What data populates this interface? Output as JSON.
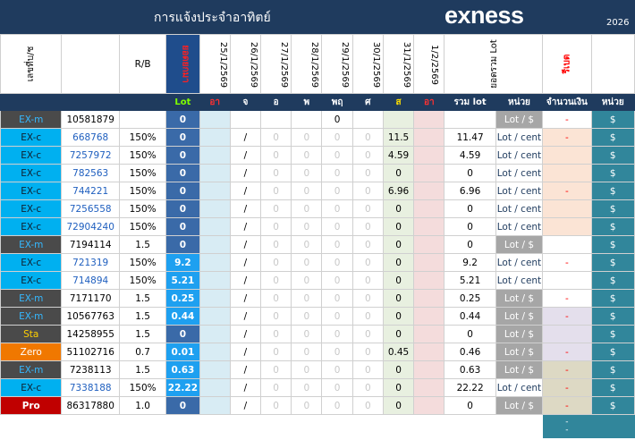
{
  "header": {
    "title": "การแจ้งประจำอาทิตย์",
    "brand": "exness",
    "year": "2026"
  },
  "columns": {
    "account": "เลขที่บ/ช",
    "rb": "R/B",
    "prev_lot": "ยอดยกมา",
    "dates": [
      "25/1/2569",
      "26/1/2569",
      "27/1/2569",
      "28/1/2569",
      "29/1/2569",
      "30/1/2569",
      "31/1/2569",
      "1/2/2569"
    ],
    "total_lot": "ยอดรวม Lot",
    "rebate": "รีเบต"
  },
  "subheader": {
    "lot": "Lot",
    "days": [
      "อา",
      "จ",
      "อ",
      "พ",
      "พฤ",
      "ศ",
      "ส",
      "อา"
    ],
    "total": "รวม lot",
    "unit": "หน่วย",
    "amount": "จำนวนเงิน",
    "unit2": "หน่วย"
  },
  "rows": [
    {
      "type": "EX-m",
      "acct": "10581879",
      "rb": "",
      "lot": "0",
      "d1": "/",
      "days": [
        "",
        "",
        "",
        "0",
        "",
        ""
      ],
      "sat": "",
      "total": "",
      "unit": "Lot / $",
      "amount": "-",
      "cur": "$"
    },
    {
      "type": "EX-c",
      "acct": "668768",
      "rb": "150%",
      "lot": "0",
      "d1": "/",
      "days": [
        "0",
        "0",
        "0",
        "0"
      ],
      "sat": "11.5",
      "total": "11.47",
      "unit": "Lot / cent",
      "amount": "-",
      "cur": "$"
    },
    {
      "type": "EX-c",
      "acct": "7257972",
      "rb": "150%",
      "lot": "0",
      "d1": "/",
      "days": [
        "0",
        "0",
        "0",
        "0"
      ],
      "sat": "4.59",
      "total": "4.59",
      "unit": "Lot / cent",
      "amount": "",
      "cur": "$"
    },
    {
      "type": "EX-c",
      "acct": "782563",
      "rb": "150%",
      "lot": "0",
      "d1": "/",
      "days": [
        "0",
        "0",
        "0",
        "0"
      ],
      "sat": "0",
      "total": "0",
      "unit": "Lot / cent",
      "amount": "",
      "cur": "$"
    },
    {
      "type": "EX-c",
      "acct": "744221",
      "rb": "150%",
      "lot": "0",
      "d1": "/",
      "days": [
        "0",
        "0",
        "0",
        "0"
      ],
      "sat": "6.96",
      "total": "6.96",
      "unit": "Lot / cent",
      "amount": "-",
      "cur": "$"
    },
    {
      "type": "EX-c",
      "acct": "7256558",
      "rb": "150%",
      "lot": "0",
      "d1": "/",
      "days": [
        "0",
        "0",
        "0",
        "0"
      ],
      "sat": "0",
      "total": "0",
      "unit": "Lot / cent",
      "amount": "",
      "cur": "$"
    },
    {
      "type": "EX-c",
      "acct": "72904240",
      "rb": "150%",
      "lot": "0",
      "d1": "/",
      "days": [
        "0",
        "0",
        "0",
        "0"
      ],
      "sat": "0",
      "total": "0",
      "unit": "Lot / cent",
      "amount": "",
      "cur": "$"
    },
    {
      "type": "EX-m",
      "acct": "7194114",
      "rb": "1.5",
      "lot": "0",
      "d1": "/",
      "days": [
        "0",
        "0",
        "0",
        "0"
      ],
      "sat": "0",
      "total": "0",
      "unit": "Lot / $",
      "amount": "",
      "cur": "$"
    },
    {
      "type": "EX-c",
      "acct": "721319",
      "rb": "150%",
      "lot": "9.2",
      "d1": "/",
      "days": [
        "0",
        "0",
        "0",
        "0"
      ],
      "sat": "0",
      "total": "9.2",
      "unit": "Lot / cent",
      "amount": "-",
      "cur": "$"
    },
    {
      "type": "EX-c",
      "acct": "714894",
      "rb": "150%",
      "lot": "5.21",
      "d1": "/",
      "days": [
        "0",
        "0",
        "0",
        "0"
      ],
      "sat": "0",
      "total": "5.21",
      "unit": "Lot / cent",
      "amount": "",
      "cur": "$"
    },
    {
      "type": "EX-m",
      "acct": "7171170",
      "rb": "1.5",
      "lot": "0.25",
      "d1": "/",
      "days": [
        "0",
        "0",
        "0",
        "0"
      ],
      "sat": "0",
      "total": "0.25",
      "unit": "Lot / $",
      "amount": "-",
      "cur": "$"
    },
    {
      "type": "EX-m",
      "acct": "10567763",
      "rb": "1.5",
      "lot": "0.44",
      "d1": "/",
      "days": [
        "0",
        "0",
        "0",
        "0"
      ],
      "sat": "0",
      "total": "0.44",
      "unit": "Lot / $",
      "amount": "-",
      "cur": "$"
    },
    {
      "type": "Sta",
      "acct": "14258955",
      "rb": "1.5",
      "lot": "0",
      "d1": "/",
      "days": [
        "0",
        "0",
        "0",
        "0"
      ],
      "sat": "0",
      "total": "0",
      "unit": "Lot / $",
      "amount": "",
      "cur": "$"
    },
    {
      "type": "Zero",
      "acct": "51102716",
      "rb": "0.7",
      "lot": "0.01",
      "d1": "/",
      "days": [
        "0",
        "0",
        "0",
        "0"
      ],
      "sat": "0.45",
      "total": "0.46",
      "unit": "Lot / $",
      "amount": "-",
      "cur": "$"
    },
    {
      "type": "EX-m",
      "acct": "7238113",
      "rb": "1.5",
      "lot": "0.63",
      "d1": "/",
      "days": [
        "0",
        "0",
        "0",
        "0"
      ],
      "sat": "0",
      "total": "0.63",
      "unit": "Lot / $",
      "amount": "-",
      "cur": "$"
    },
    {
      "type": "EX-c",
      "acct": "7338188",
      "rb": "150%",
      "lot": "22.22",
      "d1": "/",
      "days": [
        "0",
        "0",
        "0",
        "0"
      ],
      "sat": "0",
      "total": "22.22",
      "unit": "Lot / cent",
      "amount": "-",
      "cur": "$"
    },
    {
      "type": "Pro",
      "acct": "86317880",
      "rb": "1.0",
      "lot": "0",
      "d1": "/",
      "days": [
        "0",
        "0",
        "0",
        "0"
      ],
      "sat": "0",
      "total": "0",
      "unit": "Lot / $",
      "amount": "-",
      "cur": "$"
    }
  ],
  "footer": {
    "amount_marks": [
      "-",
      "-"
    ]
  },
  "styles": {
    "row_type_class": [
      "dark",
      "cyan",
      "cyan",
      "cyan",
      "cyan",
      "cyan",
      "cyan",
      "dark",
      "cyan",
      "cyan",
      "dark",
      "dark",
      "gold",
      "orng",
      "dark",
      "cyan",
      "red"
    ],
    "amount_class": [
      "wh",
      "pk",
      "pk",
      "pk",
      "pk",
      "pk",
      "pk",
      "wh",
      "wh",
      "wh",
      "wh",
      "lv",
      "lv",
      "lv",
      "bg",
      "bg",
      "bg"
    ],
    "unit_class": [
      "gray",
      "unitc",
      "unitc",
      "unitc",
      "unitc",
      "unitc",
      "unitc",
      "gray",
      "unitc",
      "unitc",
      "gray",
      "gray",
      "gray",
      "gray",
      "gray",
      "unitc",
      "gray"
    ]
  }
}
